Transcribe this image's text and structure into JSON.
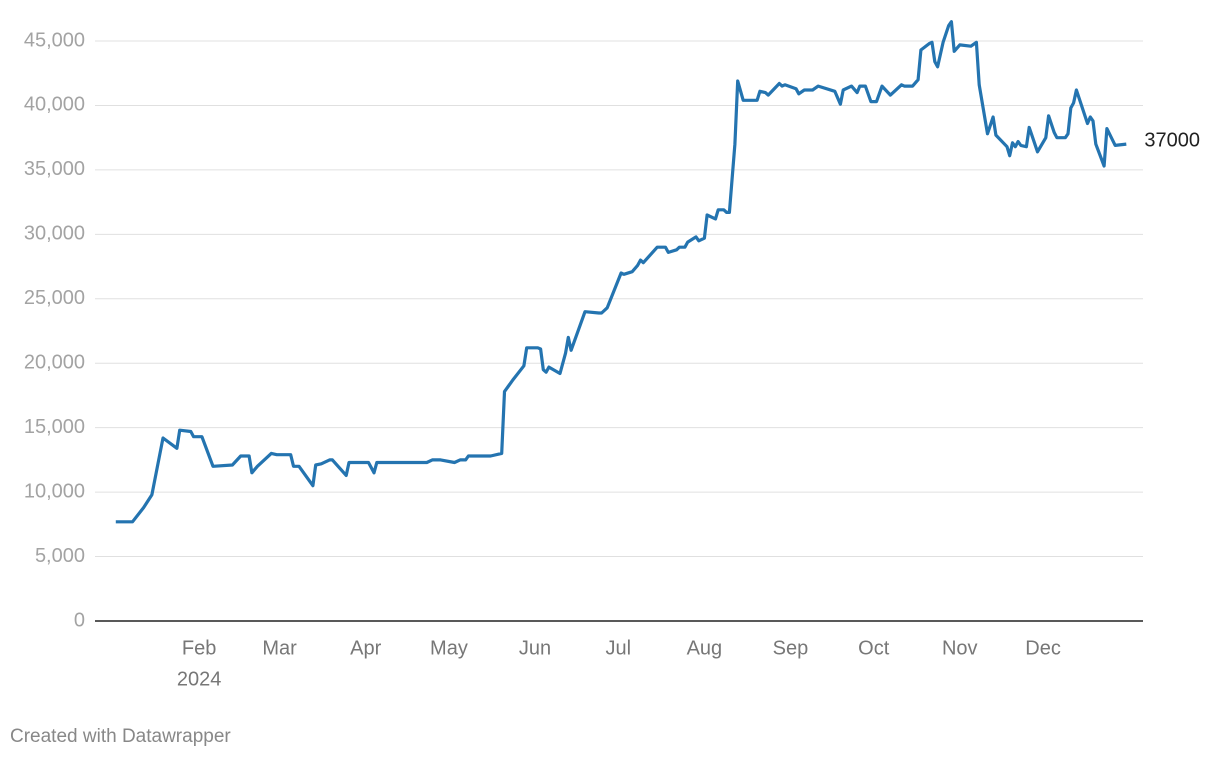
{
  "chart_data": {
    "type": "line",
    "color": "#2474b0",
    "grid": true,
    "credit": "Created with Datawrapper",
    "year_label": "2024",
    "x": [
      1,
      7,
      11,
      14,
      18,
      23,
      24,
      28,
      29,
      32,
      36,
      43,
      46,
      49,
      50,
      52,
      57,
      59,
      64,
      65,
      67,
      72,
      73,
      75,
      78,
      79,
      84,
      85,
      92,
      94,
      95,
      113,
      115,
      118,
      123,
      125,
      127,
      128,
      136,
      140,
      141,
      144,
      148,
      149,
      153,
      154,
      155,
      156,
      157,
      161,
      163,
      164,
      165,
      170,
      175,
      176,
      178,
      183,
      184,
      187,
      189,
      190,
      191,
      196,
      199,
      200,
      203,
      204,
      206,
      207,
      210,
      211,
      213,
      214,
      217,
      218,
      220,
      221,
      222,
      224,
      225,
      227,
      232,
      233,
      235,
      236,
      240,
      241,
      242,
      246,
      247,
      249,
      252,
      254,
      260,
      262,
      263,
      266,
      268,
      269,
      271,
      273,
      275,
      277,
      280,
      284,
      285,
      288,
      290,
      291,
      294,
      295,
      296,
      297,
      299,
      301,
      302,
      303,
      305,
      309,
      311,
      312,
      315,
      317,
      318,
      322,
      323,
      324,
      325,
      326,
      327,
      329,
      330,
      333,
      336,
      337,
      339,
      340,
      343,
      344,
      345,
      346,
      347,
      351,
      352,
      353,
      354,
      357,
      358,
      361,
      365
    ],
    "values": [
      7700,
      7700,
      8800,
      9800,
      14200,
      13400,
      14800,
      14700,
      14300,
      14300,
      12000,
      12100,
      12800,
      12800,
      11500,
      12000,
      13000,
      12900,
      12900,
      12000,
      12000,
      10500,
      12100,
      12200,
      12500,
      12500,
      11300,
      12300,
      12300,
      11500,
      12300,
      12300,
      12500,
      12500,
      12300,
      12500,
      12500,
      12800,
      12800,
      13000,
      17800,
      18700,
      19800,
      21200,
      21200,
      21100,
      19500,
      19300,
      19700,
      19200,
      20800,
      22000,
      21000,
      24000,
      23900,
      23900,
      24300,
      27000,
      26900,
      27100,
      27600,
      28000,
      27800,
      29000,
      29000,
      28600,
      28800,
      29000,
      29000,
      29400,
      29800,
      29500,
      29700,
      31500,
      31200,
      31900,
      31900,
      31700,
      31700,
      37000,
      41900,
      40400,
      40400,
      41100,
      41000,
      40800,
      41700,
      41500,
      41600,
      41300,
      40900,
      41200,
      41200,
      41500,
      41100,
      40100,
      41200,
      41500,
      41000,
      41500,
      41500,
      40300,
      40300,
      41500,
      40800,
      41600,
      41500,
      41500,
      42000,
      44300,
      44800,
      44900,
      43400,
      43000,
      44900,
      46200,
      46500,
      44200,
      44700,
      44600,
      44900,
      41600,
      37800,
      39100,
      37700,
      36800,
      36100,
      37100,
      36800,
      37200,
      36900,
      36800,
      38300,
      36400,
      37500,
      39200,
      37900,
      37500,
      37500,
      37800,
      39800,
      40200,
      41200,
      38600,
      39100,
      38800,
      37000,
      35300,
      38200,
      36900,
      37000
    ],
    "xlim": [
      -6.5,
      371
    ],
    "xticks": [
      {
        "value": 31,
        "label": "Feb"
      },
      {
        "value": 60,
        "label": "Mar"
      },
      {
        "value": 91,
        "label": "Apr"
      },
      {
        "value": 121,
        "label": "May"
      },
      {
        "value": 152,
        "label": "Jun"
      },
      {
        "value": 182,
        "label": "Jul"
      },
      {
        "value": 213,
        "label": "Aug"
      },
      {
        "value": 244,
        "label": "Sep"
      },
      {
        "value": 274,
        "label": "Oct"
      },
      {
        "value": 305,
        "label": "Nov"
      },
      {
        "value": 335,
        "label": "Dec"
      }
    ],
    "ylim": [
      0,
      45000
    ],
    "yticks": [
      0,
      {
        "value": 5000,
        "label": "5,000"
      },
      {
        "value": 10000,
        "label": "10,000"
      },
      {
        "value": 15000,
        "label": "15,000"
      },
      {
        "value": 20000,
        "label": "20,000"
      },
      {
        "value": 25000,
        "label": "25,000"
      },
      {
        "value": 30000,
        "label": "30,000"
      },
      {
        "value": 35000,
        "label": "35,000"
      },
      {
        "value": 40000,
        "label": "40,000"
      },
      {
        "value": 45000,
        "label": "45,000"
      }
    ]
  }
}
